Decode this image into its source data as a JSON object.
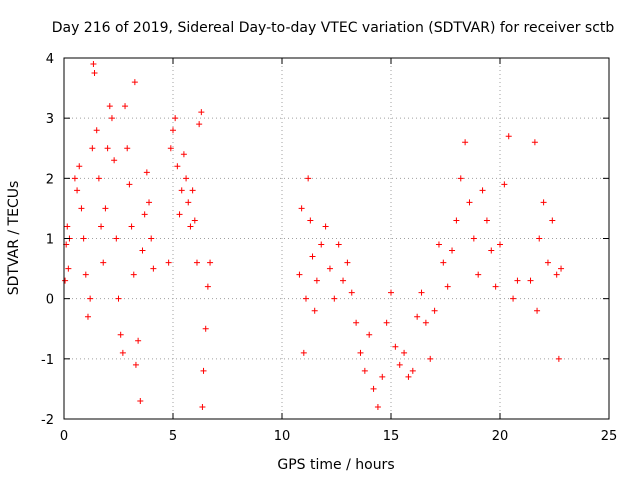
{
  "chart_data": {
    "type": "scatter",
    "title": "Day 216 of 2019, Sidereal Day-to-day VTEC variation (SDTVAR) for receiver sctb",
    "xlabel": "GPS time / hours",
    "ylabel": "SDTVAR / TECUs",
    "xlim": [
      0,
      25
    ],
    "ylim": [
      -2,
      4
    ],
    "xticks": [
      0,
      5,
      10,
      15,
      20,
      25
    ],
    "yticks": [
      -2,
      -1,
      0,
      1,
      2,
      3,
      4
    ],
    "grid": true,
    "marker": "plus",
    "color": "#ff0000",
    "series": [
      {
        "name": "SDTVAR",
        "points": [
          [
            0.05,
            0.3
          ],
          [
            0.1,
            0.9
          ],
          [
            0.15,
            1.2
          ],
          [
            0.2,
            0.5
          ],
          [
            0.25,
            1.0
          ],
          [
            0.5,
            2.0
          ],
          [
            0.6,
            1.8
          ],
          [
            0.7,
            2.2
          ],
          [
            0.8,
            1.5
          ],
          [
            0.9,
            1.0
          ],
          [
            1.0,
            0.4
          ],
          [
            1.1,
            -0.3
          ],
          [
            1.2,
            0.0
          ],
          [
            1.3,
            2.5
          ],
          [
            1.35,
            3.9
          ],
          [
            1.4,
            3.75
          ],
          [
            1.5,
            2.8
          ],
          [
            1.6,
            2.0
          ],
          [
            1.7,
            1.2
          ],
          [
            1.8,
            0.6
          ],
          [
            1.9,
            1.5
          ],
          [
            2.0,
            2.5
          ],
          [
            2.1,
            3.2
          ],
          [
            2.2,
            3.0
          ],
          [
            2.3,
            2.3
          ],
          [
            2.4,
            1.0
          ],
          [
            2.5,
            0.0
          ],
          [
            2.6,
            -0.6
          ],
          [
            2.7,
            -0.9
          ],
          [
            2.8,
            3.2
          ],
          [
            2.9,
            2.5
          ],
          [
            3.0,
            1.9
          ],
          [
            3.1,
            1.2
          ],
          [
            3.2,
            0.4
          ],
          [
            3.25,
            3.6
          ],
          [
            3.3,
            -1.1
          ],
          [
            3.4,
            -0.7
          ],
          [
            3.5,
            -1.7
          ],
          [
            3.6,
            0.8
          ],
          [
            3.7,
            1.4
          ],
          [
            3.8,
            2.1
          ],
          [
            3.9,
            1.6
          ],
          [
            4.0,
            1.0
          ],
          [
            4.1,
            0.5
          ],
          [
            4.8,
            0.6
          ],
          [
            4.9,
            2.5
          ],
          [
            5.0,
            2.8
          ],
          [
            5.1,
            3.0
          ],
          [
            5.2,
            2.2
          ],
          [
            5.3,
            1.4
          ],
          [
            5.4,
            1.8
          ],
          [
            5.5,
            2.4
          ],
          [
            5.6,
            2.0
          ],
          [
            5.7,
            1.6
          ],
          [
            5.8,
            1.2
          ],
          [
            5.9,
            1.8
          ],
          [
            6.0,
            1.3
          ],
          [
            6.1,
            0.6
          ],
          [
            6.2,
            2.9
          ],
          [
            6.3,
            3.1
          ],
          [
            6.35,
            -1.8
          ],
          [
            6.4,
            -1.2
          ],
          [
            6.5,
            -0.5
          ],
          [
            6.6,
            0.2
          ],
          [
            6.7,
            0.6
          ],
          [
            10.8,
            0.4
          ],
          [
            10.9,
            1.5
          ],
          [
            11.0,
            -0.9
          ],
          [
            11.1,
            0.0
          ],
          [
            11.2,
            2.0
          ],
          [
            11.3,
            1.3
          ],
          [
            11.4,
            0.7
          ],
          [
            11.5,
            -0.2
          ],
          [
            11.6,
            0.3
          ],
          [
            11.8,
            0.9
          ],
          [
            12.0,
            1.2
          ],
          [
            12.2,
            0.5
          ],
          [
            12.4,
            0.0
          ],
          [
            12.6,
            0.9
          ],
          [
            12.8,
            0.3
          ],
          [
            13.0,
            0.6
          ],
          [
            13.2,
            0.1
          ],
          [
            13.4,
            -0.4
          ],
          [
            13.6,
            -0.9
          ],
          [
            13.8,
            -1.2
          ],
          [
            14.0,
            -0.6
          ],
          [
            14.2,
            -1.5
          ],
          [
            14.4,
            -1.8
          ],
          [
            14.6,
            -1.3
          ],
          [
            14.8,
            -0.4
          ],
          [
            15.0,
            0.1
          ],
          [
            15.2,
            -0.8
          ],
          [
            15.4,
            -1.1
          ],
          [
            15.6,
            -0.9
          ],
          [
            15.8,
            -1.3
          ],
          [
            16.0,
            -1.2
          ],
          [
            16.2,
            -0.3
          ],
          [
            16.4,
            0.1
          ],
          [
            16.6,
            -0.4
          ],
          [
            16.8,
            -1.0
          ],
          [
            17.0,
            -0.2
          ],
          [
            17.2,
            0.9
          ],
          [
            17.4,
            0.6
          ],
          [
            17.6,
            0.2
          ],
          [
            17.8,
            0.8
          ],
          [
            18.0,
            1.3
          ],
          [
            18.2,
            2.0
          ],
          [
            18.4,
            2.6
          ],
          [
            18.6,
            1.6
          ],
          [
            18.8,
            1.0
          ],
          [
            19.0,
            0.4
          ],
          [
            19.2,
            1.8
          ],
          [
            19.4,
            1.3
          ],
          [
            19.6,
            0.8
          ],
          [
            19.8,
            0.2
          ],
          [
            20.0,
            0.9
          ],
          [
            20.2,
            1.9
          ],
          [
            20.4,
            2.7
          ],
          [
            20.6,
            0.0
          ],
          [
            20.8,
            0.3
          ],
          [
            21.4,
            0.3
          ],
          [
            21.6,
            2.6
          ],
          [
            21.7,
            -0.2
          ],
          [
            21.8,
            1.0
          ],
          [
            22.0,
            1.6
          ],
          [
            22.2,
            0.6
          ],
          [
            22.4,
            1.3
          ],
          [
            22.6,
            0.4
          ],
          [
            22.7,
            -1.0
          ],
          [
            22.8,
            0.5
          ]
        ]
      }
    ]
  }
}
